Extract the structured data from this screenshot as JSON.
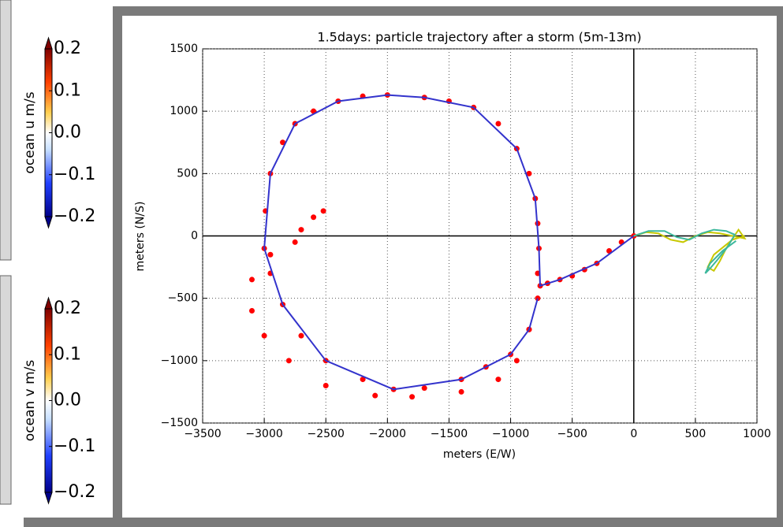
{
  "chart_data": {
    "type": "scatter",
    "title": "1.5days: particle trajectory after a storm (5m-13m)",
    "x_label": "meters (E/W)",
    "y_label": "meters (N/S)",
    "xlim": [
      -3500,
      1000
    ],
    "ylim": [
      -1500,
      1500
    ],
    "xticks": [
      {
        "value": -3500,
        "label": "−3500"
      },
      {
        "value": -3000,
        "label": "−3000"
      },
      {
        "value": -2500,
        "label": "−2500"
      },
      {
        "value": -2000,
        "label": "−2000"
      },
      {
        "value": -1500,
        "label": "−1500"
      },
      {
        "value": -1000,
        "label": "−1000"
      },
      {
        "value": -500,
        "label": "−500"
      },
      0,
      500,
      1000
    ],
    "yticks": [
      {
        "value": -1500,
        "label": "−1500"
      },
      {
        "value": -1000,
        "label": "−1000"
      },
      {
        "value": -500,
        "label": "−500"
      },
      0,
      500,
      1000,
      1500
    ],
    "grid": true,
    "zero_lines": true,
    "series": [
      {
        "style": "dots",
        "color": "#ff0000",
        "x": [
          0,
          -100,
          -200,
          -300,
          -400,
          -500,
          -600,
          -700,
          -760,
          -780,
          -770,
          -780,
          -800,
          -850,
          -950,
          -1100,
          -1300,
          -1500,
          -1700,
          -2000,
          -2200,
          -2400,
          -2600,
          -2750,
          -2850,
          -2950,
          -2990,
          -3000,
          -2950,
          -2850,
          -2700,
          -2500,
          -2200,
          -1950,
          -1700,
          -1400,
          -1200,
          -1000,
          -850,
          -780,
          -850,
          -950,
          -1100,
          -1400,
          -1800,
          -2100,
          -2500,
          -2800,
          -3000,
          -3100,
          -3100,
          -2950,
          -2750,
          -2700,
          -2600,
          -2520
        ],
        "y": [
          0,
          -50,
          -120,
          -220,
          -270,
          -320,
          -350,
          -380,
          -400,
          -300,
          -100,
          100,
          300,
          500,
          700,
          900,
          1030,
          1080,
          1110,
          1130,
          1120,
          1080,
          1000,
          900,
          750,
          500,
          200,
          -100,
          -300,
          -550,
          -800,
          -1000,
          -1150,
          -1230,
          -1220,
          -1150,
          -1050,
          -950,
          -750,
          -500,
          -750,
          -1000,
          -1150,
          -1250,
          -1290,
          -1280,
          -1200,
          -1000,
          -800,
          -600,
          -350,
          -150,
          -50,
          50,
          150,
          200
        ]
      },
      {
        "style": "line",
        "color": "#3333cc",
        "x": [
          0,
          -300,
          -600,
          -760,
          -770,
          -800,
          -950,
          -1300,
          -1700,
          -2000,
          -2400,
          -2750,
          -2950,
          -3000,
          -2850,
          -2500,
          -1950,
          -1400,
          -1000,
          -850,
          -780
        ],
        "y": [
          0,
          -220,
          -350,
          -400,
          -100,
          300,
          700,
          1030,
          1110,
          1130,
          1080,
          900,
          500,
          -100,
          -550,
          -1000,
          -1230,
          -1150,
          -950,
          -750,
          -500
        ]
      },
      {
        "style": "line",
        "color": "#c8c800",
        "x": [
          0,
          100,
          200,
          300,
          400,
          500,
          600,
          700,
          800,
          900,
          850,
          750,
          700,
          650,
          600,
          650,
          800,
          900
        ],
        "y": [
          0,
          30,
          20,
          -30,
          -50,
          0,
          30,
          20,
          0,
          -20,
          50,
          -100,
          -200,
          -280,
          -250,
          -150,
          -30,
          0
        ]
      },
      {
        "style": "line",
        "color": "#3cb89c",
        "x": [
          0,
          120,
          250,
          350,
          450,
          550,
          650,
          750,
          820,
          760,
          680,
          620,
          580,
          620,
          720,
          830
        ],
        "y": [
          0,
          40,
          40,
          -10,
          -30,
          20,
          50,
          40,
          10,
          -90,
          -190,
          -260,
          -300,
          -220,
          -120,
          -40
        ]
      }
    ]
  },
  "colorbars": [
    {
      "label": "ocean u m/s",
      "lim": [
        -0.2,
        0.2
      ],
      "ticks": [
        0.2,
        0.1,
        {
          "value": 0,
          "label": "0.0"
        },
        {
          "value": -0.1,
          "label": "−0.1"
        },
        {
          "value": -0.2,
          "label": "−0.2"
        }
      ]
    },
    {
      "label": "ocean v m/s",
      "lim": [
        -0.2,
        0.2
      ],
      "ticks": [
        0.2,
        0.1,
        {
          "value": 0,
          "label": "0.0"
        },
        {
          "value": -0.1,
          "label": "−0.1"
        },
        {
          "value": -0.2,
          "label": "−0.2"
        }
      ]
    }
  ]
}
